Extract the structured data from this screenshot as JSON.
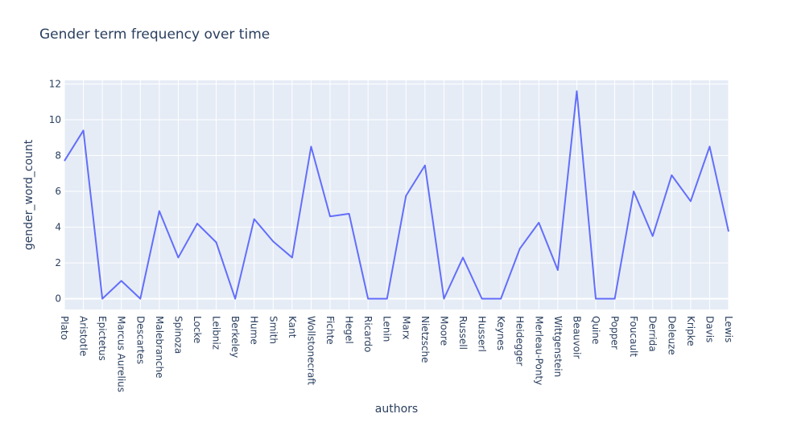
{
  "chart_data": {
    "type": "line",
    "title": "Gender term frequency over time",
    "xlabel": "authors",
    "ylabel": "gender_word_count",
    "categories": [
      "Plato",
      "Aristotle",
      "Epictetus",
      "Marcus Aurelius",
      "Descartes",
      "Malebranche",
      "Spinoza",
      "Locke",
      "Leibniz",
      "Berkeley",
      "Hume",
      "Smith",
      "Kant",
      "Wollstonecraft",
      "Fichte",
      "Hegel",
      "Ricardo",
      "Lenin",
      "Marx",
      "Nietzsche",
      "Moore",
      "Russell",
      "Husserl",
      "Keynes",
      "Heidegger",
      "Merleau-Ponty",
      "Wittgenstein",
      "Beauvoir",
      "Quine",
      "Popper",
      "Foucault",
      "Derrida",
      "Deleuze",
      "Kripke",
      "Davis",
      "Lewis"
    ],
    "series": [
      {
        "values": [
          7.7,
          9.4,
          0,
          1.0,
          0,
          4.9,
          2.3,
          4.2,
          3.15,
          0,
          4.45,
          3.2,
          2.3,
          8.5,
          4.6,
          4.75,
          0,
          0,
          5.75,
          7.45,
          0,
          2.3,
          0,
          0,
          2.8,
          4.25,
          1.6,
          11.6,
          0,
          0,
          6.0,
          3.5,
          6.9,
          5.45,
          8.5,
          3.75
        ],
        "color": "#636efa"
      }
    ],
    "ylim": [
      -0.6,
      12.2
    ],
    "yticks": [
      0,
      2,
      4,
      6,
      8,
      10,
      12
    ],
    "grid": true,
    "plot_bgcolor": "#e5ecf6",
    "grid_color": "#ffffff",
    "text_color": "#2a3f5f"
  }
}
